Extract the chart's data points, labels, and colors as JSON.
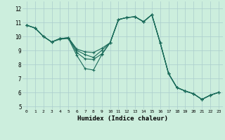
{
  "xlabel": "Humidex (Indice chaleur)",
  "bg_color": "#cceedd",
  "grid_color": "#aacccc",
  "line_color": "#1a6b5a",
  "xlim": [
    -0.5,
    23.5
  ],
  "ylim": [
    4.8,
    12.5
  ],
  "xticks": [
    0,
    1,
    2,
    3,
    4,
    5,
    6,
    7,
    8,
    9,
    10,
    11,
    12,
    13,
    14,
    15,
    16,
    17,
    18,
    19,
    20,
    21,
    22,
    23
  ],
  "yticks": [
    5,
    6,
    7,
    8,
    9,
    10,
    11,
    12
  ],
  "series": [
    [
      10.8,
      10.6,
      10.0,
      9.6,
      9.8,
      9.85,
      8.65,
      7.7,
      7.6,
      8.7,
      9.55,
      11.2,
      11.35,
      11.4,
      11.05,
      11.55,
      9.55,
      7.35,
      6.35,
      6.1,
      5.9,
      5.5,
      5.8,
      6.0
    ],
    [
      10.8,
      10.6,
      10.0,
      9.6,
      9.85,
      9.9,
      8.85,
      8.4,
      8.35,
      8.75,
      9.55,
      11.2,
      11.35,
      11.4,
      11.05,
      11.55,
      9.55,
      7.35,
      6.35,
      6.1,
      5.9,
      5.5,
      5.8,
      6.0
    ],
    [
      10.8,
      10.6,
      10.0,
      9.6,
      9.85,
      9.9,
      9.0,
      8.7,
      8.5,
      9.0,
      9.55,
      11.2,
      11.35,
      11.4,
      11.05,
      11.55,
      9.55,
      7.35,
      6.35,
      6.1,
      5.9,
      5.5,
      5.8,
      6.0
    ],
    [
      10.8,
      10.6,
      10.0,
      9.6,
      9.85,
      9.9,
      9.1,
      8.9,
      8.85,
      9.15,
      9.55,
      11.2,
      11.35,
      11.4,
      11.05,
      11.55,
      9.55,
      7.35,
      6.35,
      6.1,
      5.9,
      5.5,
      5.8,
      6.0
    ]
  ]
}
